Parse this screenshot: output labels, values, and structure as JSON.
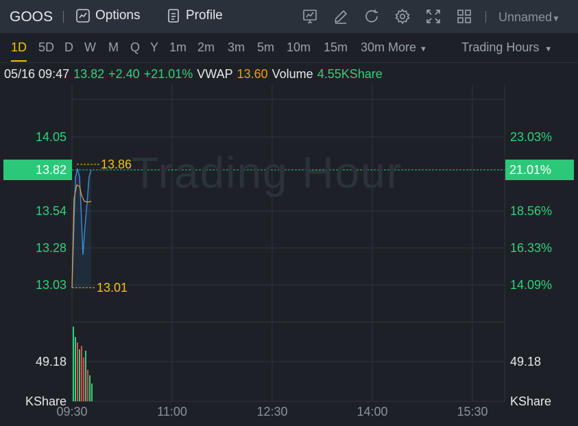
{
  "toolbar": {
    "symbol": "GOOS",
    "options_label": "Options",
    "profile_label": "Profile",
    "layout_name": "Unnamed",
    "icons": [
      "chart-icon",
      "edit-icon",
      "refresh-icon",
      "settings-icon",
      "fullscreen-icon",
      "grid-icon"
    ]
  },
  "periods": {
    "items": [
      "1D",
      "5D",
      "D",
      "W",
      "M",
      "Q",
      "Y",
      "1m",
      "2m",
      "3m",
      "5m",
      "10m",
      "15m"
    ],
    "more_label": "30m More",
    "active": "1D",
    "session_label": "Trading Hours"
  },
  "quote": {
    "datetime": "05/16 09:47",
    "price": "13.82",
    "change": "+2.40",
    "change_pct": "+21.01%",
    "vwap_label": "VWAP",
    "vwap": "13.60",
    "volume_label": "Volume",
    "volume": "4.55KShare"
  },
  "chart": {
    "watermark": "Trading Hour",
    "price_axis_left": [
      "14.05",
      "13.54",
      "13.28",
      "13.03"
    ],
    "price_axis_right": [
      "23.03%",
      "18.56%",
      "16.33%",
      "14.09%"
    ],
    "current_price_badge": "13.82",
    "current_pct_badge": "21.01%",
    "high_label": "13.86",
    "low_label": "13.01",
    "volume_axis_left": "49.18",
    "volume_axis_right": "49.18",
    "volume_unit_left": "KShare",
    "volume_unit_right": "KShare",
    "time_axis": [
      "09:30",
      "11:00",
      "12:30",
      "14:00",
      "15:30"
    ],
    "colors": {
      "up": "#2fd17c",
      "down": "#e0474c",
      "price_line": "#3b8fe0",
      "vwap_line": "#e8a040",
      "highlight": "#f5c400",
      "badge": "#2cc87a"
    }
  }
}
